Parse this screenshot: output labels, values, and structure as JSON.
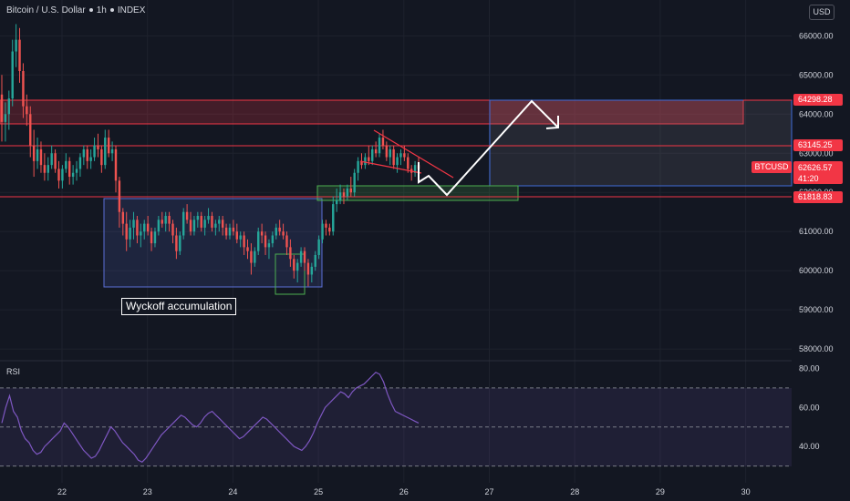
{
  "header": {
    "symbol": "Bitcoin / U.S. Dollar",
    "timeframe": "1h",
    "exchange": "INDEX",
    "currency_button": "USD"
  },
  "annotations": {
    "wyckoff": "Wyckoff accumulation",
    "rsi_label": "RSI"
  },
  "price_labels": {
    "upper_zone": "64298.28",
    "mid_level": "63145.25",
    "ticker": "BTCUSD",
    "current_price": "62626.57",
    "countdown": "41:20",
    "support": "61818.83"
  },
  "colors": {
    "background": "#131722",
    "grid": "#1e222d",
    "up": "#26a69a",
    "down": "#ef5350",
    "resistance": "#f23645",
    "accumulation_box": "#5b6fd6",
    "support_zone": "#4caf50",
    "rsi": "#7e57c2",
    "projection": "#ffffff"
  },
  "chart_data": [
    {
      "type": "candlestick",
      "title": "Bitcoin / U.S. Dollar, 1h, INDEX",
      "x": [
        "22",
        "23",
        "24",
        "25",
        "26",
        "27",
        "28",
        "29",
        "30"
      ],
      "x_ticks": [
        "22",
        "23",
        "24",
        "25",
        "26",
        "27",
        "28",
        "29",
        "30"
      ],
      "y_ticks": [
        "66000.00",
        "65000.00",
        "64000.00",
        "63000.00",
        "62000.00",
        "61000.00",
        "60000.00",
        "59000.00",
        "58000.00"
      ],
      "ylim": [
        57700,
        66450
      ],
      "ohlc": [
        [
          64500,
          65000,
          63300,
          63800
        ],
        [
          63800,
          64300,
          63300,
          64000
        ],
        [
          64000,
          64600,
          63600,
          64400
        ],
        [
          64400,
          65900,
          64200,
          65600
        ],
        [
          65600,
          66300,
          65200,
          65900
        ],
        [
          65900,
          66200,
          64800,
          65100
        ],
        [
          65100,
          65300,
          63900,
          64200
        ],
        [
          64200,
          64500,
          63700,
          64000
        ],
        [
          64000,
          64200,
          62900,
          63200
        ],
        [
          63200,
          63600,
          62400,
          62800
        ],
        [
          62800,
          63400,
          62600,
          63100
        ],
        [
          63100,
          63300,
          62500,
          62700
        ],
        [
          62700,
          63000,
          62300,
          62500
        ],
        [
          62500,
          62900,
          62300,
          62700
        ],
        [
          62700,
          63200,
          62600,
          63000
        ],
        [
          63000,
          63100,
          62500,
          62600
        ],
        [
          62600,
          62800,
          62100,
          62300
        ],
        [
          62300,
          62700,
          62100,
          62600
        ],
        [
          62600,
          63000,
          62500,
          62800
        ],
        [
          62800,
          62900,
          62200,
          62400
        ],
        [
          62400,
          62700,
          62200,
          62500
        ],
        [
          62500,
          62800,
          62300,
          62600
        ],
        [
          62600,
          63000,
          62400,
          62900
        ],
        [
          62900,
          63200,
          62700,
          63100
        ],
        [
          63100,
          63200,
          62600,
          62800
        ],
        [
          62800,
          63100,
          62600,
          62900
        ],
        [
          62900,
          63400,
          62800,
          63200
        ],
        [
          63200,
          63500,
          62900,
          63100
        ],
        [
          63100,
          63200,
          62500,
          62700
        ],
        [
          62700,
          63600,
          62600,
          63400
        ],
        [
          63400,
          63600,
          62900,
          63000
        ],
        [
          63000,
          63300,
          62800,
          63100
        ],
        [
          63100,
          63200,
          62000,
          62300
        ],
        [
          62300,
          62400,
          61100,
          61500
        ],
        [
          61500,
          61600,
          60900,
          61200
        ],
        [
          61200,
          61500,
          60500,
          60800
        ],
        [
          60800,
          61300,
          60600,
          61100
        ],
        [
          61100,
          61500,
          60800,
          61300
        ],
        [
          61300,
          61400,
          60700,
          60900
        ],
        [
          60900,
          61200,
          60600,
          61000
        ],
        [
          61000,
          61300,
          60800,
          61200
        ],
        [
          61200,
          61400,
          60900,
          61000
        ],
        [
          61000,
          61100,
          60500,
          60700
        ],
        [
          60700,
          61100,
          60600,
          61000
        ],
        [
          61000,
          61400,
          60900,
          61300
        ],
        [
          61300,
          61500,
          61100,
          61200
        ],
        [
          61200,
          61500,
          61000,
          61400
        ],
        [
          61400,
          61500,
          61000,
          61200
        ],
        [
          61200,
          61300,
          60700,
          60900
        ],
        [
          60900,
          61100,
          60300,
          60500
        ],
        [
          60500,
          61000,
          60400,
          60900
        ],
        [
          60900,
          61600,
          60800,
          61500
        ],
        [
          61500,
          61700,
          61200,
          61300
        ],
        [
          61300,
          61500,
          60900,
          61000
        ],
        [
          61000,
          61400,
          60900,
          61300
        ],
        [
          61300,
          61500,
          61100,
          61400
        ],
        [
          61400,
          61500,
          61000,
          61100
        ],
        [
          61100,
          61400,
          60900,
          61300
        ],
        [
          61300,
          61600,
          61200,
          61400
        ],
        [
          61400,
          61500,
          61000,
          61100
        ],
        [
          61100,
          61300,
          60900,
          61200
        ],
        [
          61200,
          61400,
          61000,
          61300
        ],
        [
          61300,
          61400,
          60900,
          61100
        ],
        [
          61100,
          61200,
          60800,
          60900
        ],
        [
          60900,
          61200,
          60800,
          61100
        ],
        [
          61100,
          61300,
          60900,
          61000
        ],
        [
          61000,
          61200,
          60700,
          60800
        ],
        [
          60800,
          61000,
          60600,
          60900
        ],
        [
          60900,
          61000,
          60400,
          60600
        ],
        [
          60600,
          60800,
          60300,
          60500
        ],
        [
          60500,
          60700,
          59900,
          60200
        ],
        [
          60200,
          60600,
          60100,
          60500
        ],
        [
          60500,
          61100,
          60400,
          61000
        ],
        [
          61000,
          61200,
          60700,
          60900
        ],
        [
          60900,
          61000,
          60400,
          60600
        ],
        [
          60600,
          60800,
          60300,
          60700
        ],
        [
          60700,
          61000,
          60600,
          60900
        ],
        [
          60900,
          61200,
          60800,
          61100
        ],
        [
          61100,
          61300,
          60900,
          61000
        ],
        [
          61000,
          61200,
          60800,
          60900
        ],
        [
          60900,
          61000,
          60400,
          60600
        ],
        [
          60600,
          60800,
          60100,
          60300
        ],
        [
          60300,
          60400,
          59800,
          60000
        ],
        [
          60000,
          60300,
          59700,
          60200
        ],
        [
          60200,
          60600,
          60100,
          60500
        ],
        [
          60500,
          60600,
          60000,
          60200
        ],
        [
          60200,
          60300,
          59600,
          59900
        ],
        [
          59900,
          60200,
          59700,
          60100
        ],
        [
          60100,
          60500,
          60000,
          60400
        ],
        [
          60400,
          60900,
          60300,
          60800
        ],
        [
          60800,
          61300,
          60700,
          61200
        ],
        [
          61200,
          61300,
          60900,
          61100
        ],
        [
          61100,
          61200,
          60900,
          61000
        ],
        [
          61000,
          61900,
          60900,
          61700
        ],
        [
          61700,
          62100,
          61500,
          61800
        ],
        [
          61800,
          62200,
          61700,
          62000
        ],
        [
          62000,
          62100,
          61700,
          61900
        ],
        [
          61900,
          62200,
          61800,
          62100
        ],
        [
          62100,
          62400,
          61900,
          62000
        ],
        [
          62000,
          62600,
          61900,
          62500
        ],
        [
          62500,
          62900,
          62300,
          62800
        ],
        [
          62800,
          63000,
          62600,
          62700
        ],
        [
          62700,
          63000,
          62600,
          62900
        ],
        [
          62900,
          63200,
          62700,
          62800
        ],
        [
          62800,
          63200,
          62700,
          63100
        ],
        [
          63100,
          63300,
          62900,
          63000
        ],
        [
          63000,
          63500,
          62900,
          63400
        ],
        [
          63400,
          63600,
          63100,
          63200
        ],
        [
          63200,
          63300,
          62800,
          62900
        ],
        [
          62900,
          63200,
          62700,
          63100
        ],
        [
          63100,
          63200,
          62600,
          62700
        ],
        [
          62700,
          63000,
          62500,
          62900
        ],
        [
          62900,
          63100,
          62700,
          63000
        ],
        [
          63000,
          63200,
          62800,
          62900
        ],
        [
          62900,
          63000,
          62500,
          62600
        ],
        [
          62600,
          62700,
          62300,
          62500
        ],
        [
          62500,
          62800,
          62400,
          62700
        ],
        [
          62700,
          62900,
          62500,
          62600
        ]
      ]
    },
    {
      "type": "line",
      "title": "RSI",
      "y_ticks": [
        "80.00",
        "60.00",
        "40.00"
      ],
      "ylim": [
        27,
        83
      ],
      "bands": [
        30,
        50,
        70
      ],
      "series": [
        {
          "values": [
            52,
            60,
            66,
            58,
            55,
            48,
            44,
            42,
            38,
            36,
            37,
            40,
            42,
            44,
            46,
            48,
            52,
            50,
            47,
            44,
            41,
            38,
            36,
            34,
            35,
            38,
            42,
            46,
            50,
            48,
            45,
            42,
            40,
            38,
            36,
            33,
            32,
            34,
            37,
            40,
            43,
            46,
            48,
            50,
            52,
            54,
            56,
            55,
            53,
            51,
            50,
            52,
            55,
            57,
            58,
            56,
            54,
            52,
            50,
            48,
            46,
            44,
            45,
            47,
            49,
            51,
            53,
            55,
            54,
            52,
            50,
            48,
            46,
            44,
            42,
            40,
            39,
            38,
            40,
            43,
            47,
            52,
            56,
            60,
            62,
            64,
            66,
            68,
            67,
            65,
            68,
            70,
            71,
            72,
            74,
            76,
            78,
            77,
            73,
            67,
            62,
            58,
            57,
            56,
            55,
            54,
            53,
            52
          ]
        }
      ]
    }
  ]
}
